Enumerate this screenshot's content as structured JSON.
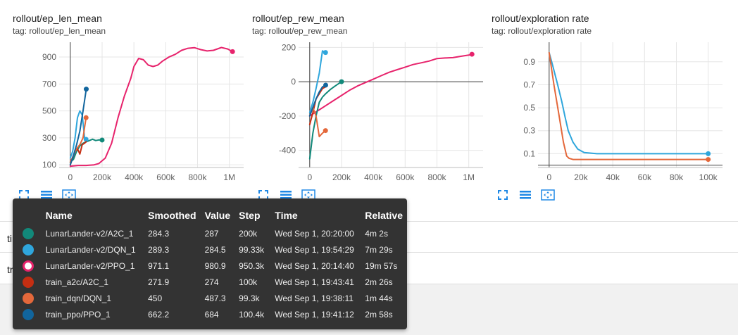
{
  "chart_data": [
    {
      "type": "line",
      "title": "rollout/ep_len_mean",
      "tag": "tag: rollout/ep_len_mean",
      "xlim": [
        -70000,
        1090000
      ],
      "ylim": [
        80,
        1010
      ],
      "xticks": [
        0,
        200000,
        400000,
        600000,
        800000,
        1000000
      ],
      "xtick_labels": [
        "0",
        "200k",
        "400k",
        "600k",
        "800k",
        "1M"
      ],
      "yticks": [
        100,
        300,
        500,
        700,
        900
      ],
      "ytick_labels": [
        "100",
        "300",
        "500",
        "700",
        "900"
      ],
      "grid": true,
      "series": [
        {
          "name": "LunarLander-v2/PPO_1",
          "color": "#e7236c",
          "marker": true,
          "x": [
            0,
            50000,
            100000,
            150000,
            180000,
            220000,
            260000,
            300000,
            340000,
            380000,
            400000,
            430000,
            460000,
            490000,
            520000,
            550000,
            580000,
            620000,
            660000,
            700000,
            740000,
            780000,
            820000,
            860000,
            900000,
            950000,
            990000,
            1020000
          ],
          "y": [
            90,
            95,
            95,
            100,
            110,
            150,
            260,
            450,
            610,
            740,
            830,
            890,
            880,
            840,
            830,
            840,
            870,
            900,
            920,
            950,
            965,
            970,
            955,
            945,
            950,
            971,
            960,
            940
          ]
        },
        {
          "name": "LunarLander-v2/A2C_1",
          "color": "#12897a",
          "marker": true,
          "x": [
            0,
            20000,
            40000,
            60000,
            80000,
            100000,
            120000,
            140000,
            160000,
            180000,
            200000
          ],
          "y": [
            120,
            140,
            200,
            240,
            260,
            270,
            280,
            290,
            280,
            285,
            284
          ]
        },
        {
          "name": "LunarLander-v2/DQN_1",
          "color": "#2fa6dc",
          "marker": true,
          "x": [
            0,
            15000,
            30000,
            45000,
            60000,
            75000,
            90000,
            99330
          ],
          "y": [
            150,
            200,
            300,
            450,
            500,
            470,
            300,
            289
          ]
        },
        {
          "name": "train_a2c/A2C_1",
          "color": "#c52e12",
          "marker": false,
          "x": [
            0,
            15000,
            30000,
            45000,
            60000,
            75000,
            90000,
            100000
          ],
          "y": [
            100,
            150,
            200,
            220,
            180,
            250,
            260,
            272
          ]
        },
        {
          "name": "train_dqn/DQN_1",
          "color": "#e4683b",
          "marker": true,
          "x": [
            0,
            20000,
            40000,
            60000,
            80000,
            99300
          ],
          "y": [
            120,
            170,
            220,
            250,
            300,
            450
          ]
        },
        {
          "name": "train_ppo/PPO_1",
          "color": "#11659d",
          "marker": true,
          "x": [
            0,
            20000,
            40000,
            60000,
            80000,
            100400
          ],
          "y": [
            100,
            170,
            250,
            350,
            500,
            662
          ]
        }
      ]
    },
    {
      "type": "line",
      "title": "rollout/ep_rew_mean",
      "tag": "tag: rollout/ep_rew_mean",
      "xlim": [
        -70000,
        1090000
      ],
      "ylim": [
        -500,
        230
      ],
      "xticks": [
        0,
        200000,
        400000,
        600000,
        800000,
        1000000
      ],
      "xtick_labels": [
        "0",
        "200k",
        "400k",
        "600k",
        "800k",
        "1M"
      ],
      "yticks": [
        -400,
        -200,
        0,
        200
      ],
      "ytick_labels": [
        "-400",
        "-200",
        "0",
        "200"
      ],
      "grid": true,
      "series": [
        {
          "name": "LunarLander-v2/PPO_1",
          "color": "#e7236c",
          "marker": true,
          "x": [
            0,
            50000,
            100000,
            150000,
            200000,
            250000,
            300000,
            350000,
            400000,
            450000,
            500000,
            550000,
            600000,
            650000,
            700000,
            750000,
            800000,
            850000,
            900000,
            950000,
            1000000,
            1020000
          ],
          "y": [
            -200,
            -170,
            -140,
            -110,
            -80,
            -50,
            -25,
            -5,
            15,
            35,
            55,
            70,
            85,
            100,
            110,
            120,
            135,
            138,
            140,
            148,
            155,
            160
          ]
        },
        {
          "name": "LunarLander-v2/A2C_1",
          "color": "#12897a",
          "marker": true,
          "x": [
            0,
            20000,
            40000,
            60000,
            80000,
            100000,
            130000,
            160000,
            200000
          ],
          "y": [
            -450,
            -300,
            -200,
            -120,
            -90,
            -70,
            -45,
            -25,
            0
          ]
        },
        {
          "name": "LunarLander-v2/DQN_1",
          "color": "#2fa6dc",
          "marker": true,
          "x": [
            0,
            20000,
            40000,
            60000,
            80000,
            99330
          ],
          "y": [
            -180,
            -120,
            -40,
            50,
            180,
            170
          ]
        },
        {
          "name": "train_a2c/A2C_1",
          "color": "#c52e12",
          "marker": false,
          "x": [
            0,
            20000,
            40000,
            60000,
            80000,
            100000
          ],
          "y": [
            -250,
            -180,
            -100,
            -70,
            -40,
            -30
          ]
        },
        {
          "name": "train_dqn/DQN_1",
          "color": "#e4683b",
          "marker": true,
          "x": [
            0,
            20000,
            40000,
            60000,
            80000,
            99300
          ],
          "y": [
            -200,
            -150,
            -200,
            -320,
            -300,
            -285
          ]
        },
        {
          "name": "train_ppo/PPO_1",
          "color": "#11659d",
          "marker": true,
          "x": [
            0,
            20000,
            40000,
            60000,
            80000,
            100400
          ],
          "y": [
            -200,
            -150,
            -100,
            -60,
            -30,
            -20
          ]
        }
      ]
    },
    {
      "type": "line",
      "title": "rollout/exploration rate",
      "tag": "tag: rollout/exploration rate",
      "xlim": [
        -7000,
        109000
      ],
      "ylim": [
        -0.02,
        1.07
      ],
      "xticks": [
        0,
        20000,
        40000,
        60000,
        80000,
        100000
      ],
      "xtick_labels": [
        "0",
        "20k",
        "40k",
        "60k",
        "80k",
        "100k"
      ],
      "yticks": [
        0.1,
        0.3,
        0.5,
        0.7,
        0.9
      ],
      "ytick_labels": [
        "0.1",
        "0.3",
        "0.5",
        "0.7",
        "0.9"
      ],
      "grid": true,
      "series": [
        {
          "name": "LunarLander-v2/DQN_1",
          "color": "#2fa6dc",
          "marker": true,
          "x": [
            0,
            2000,
            5000,
            8000,
            10000,
            12000,
            15000,
            18000,
            22000,
            30000,
            60000,
            100000
          ],
          "y": [
            0.98,
            0.88,
            0.72,
            0.55,
            0.42,
            0.3,
            0.2,
            0.14,
            0.11,
            0.1,
            0.1,
            0.1
          ]
        },
        {
          "name": "train_dqn/DQN_1",
          "color": "#e4683b",
          "marker": true,
          "x": [
            0,
            3000,
            6000,
            9000,
            11000,
            12500,
            15000,
            30000,
            60000,
            100000
          ],
          "y": [
            0.98,
            0.7,
            0.45,
            0.2,
            0.08,
            0.06,
            0.05,
            0.05,
            0.05,
            0.05
          ]
        }
      ]
    }
  ],
  "rows": {
    "row1_label": "tim",
    "row2_label": "tra"
  },
  "tooltip": {
    "headers": {
      "name": "Name",
      "smoothed": "Smoothed",
      "value": "Value",
      "step": "Step",
      "time": "Time",
      "relative": "Relative"
    },
    "rows": [
      {
        "color": "#12897a",
        "hollow": false,
        "name": "LunarLander-v2/A2C_1",
        "smoothed": "284.3",
        "value": "287",
        "step": "200k",
        "time": "Wed Sep 1, 20:20:00",
        "relative": "4m 2s"
      },
      {
        "color": "#2fa6dc",
        "hollow": false,
        "name": "LunarLander-v2/DQN_1",
        "smoothed": "289.3",
        "value": "284.5",
        "step": "99.33k",
        "time": "Wed Sep 1, 19:54:29",
        "relative": "7m 29s"
      },
      {
        "color": "#e7236c",
        "hollow": true,
        "name": "LunarLander-v2/PPO_1",
        "smoothed": "971.1",
        "value": "980.9",
        "step": "950.3k",
        "time": "Wed Sep 1, 20:14:40",
        "relative": "19m 57s"
      },
      {
        "color": "#c52e12",
        "hollow": false,
        "name": "train_a2c/A2C_1",
        "smoothed": "271.9",
        "value": "274",
        "step": "100k",
        "time": "Wed Sep 1, 19:43:41",
        "relative": "2m 26s"
      },
      {
        "color": "#e4683b",
        "hollow": false,
        "name": "train_dqn/DQN_1",
        "smoothed": "450",
        "value": "487.3",
        "step": "99.3k",
        "time": "Wed Sep 1, 19:38:11",
        "relative": "1m 44s"
      },
      {
        "color": "#11659d",
        "hollow": false,
        "name": "train_ppo/PPO_1",
        "smoothed": "662.2",
        "value": "684",
        "step": "100.4k",
        "time": "Wed Sep 1, 19:41:12",
        "relative": "2m 58s"
      }
    ]
  },
  "icons": [
    "expand-icon",
    "data-table-icon",
    "fit-domain-icon"
  ],
  "accent": "#1e88e5"
}
